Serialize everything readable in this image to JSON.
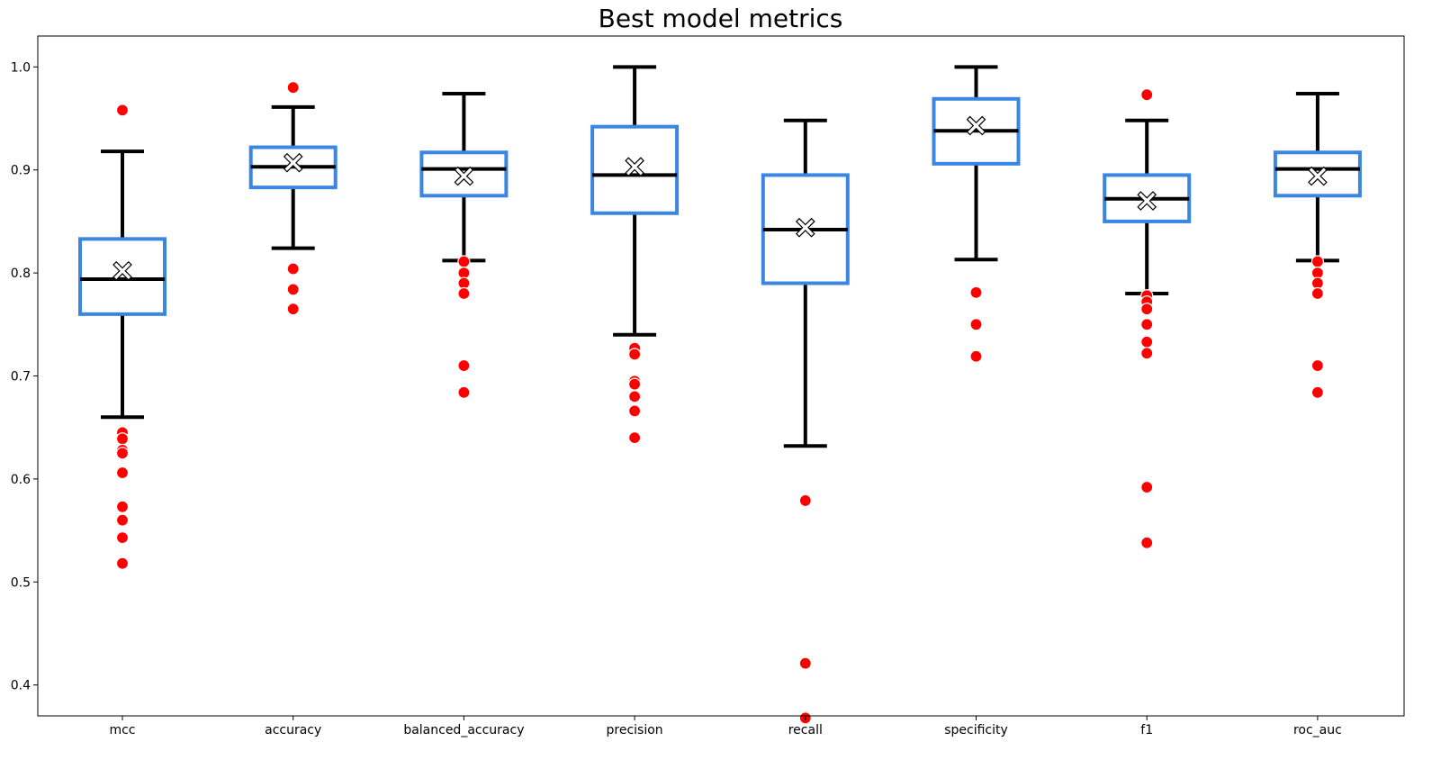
{
  "chart_data": {
    "type": "box",
    "title": "Best model metrics",
    "xlabel": "",
    "ylabel": "",
    "ylim": [
      0.37,
      1.03
    ],
    "yticks": [
      0.4,
      0.5,
      0.6,
      0.7,
      0.8,
      0.9,
      1.0
    ],
    "ytick_labels": [
      "0.4",
      "0.5",
      "0.6",
      "0.7",
      "0.8",
      "0.9",
      "1.0"
    ],
    "grid": false,
    "colors": {
      "box": "#3a86e0",
      "whisker": "#000000",
      "median": "#000000",
      "outlier": "#ff0000",
      "mean_marker_fill": "#ffffff",
      "mean_marker_edge": "#000000"
    },
    "categories": [
      "mcc",
      "accuracy",
      "balanced_accuracy",
      "precision",
      "recall",
      "specificity",
      "f1",
      "roc_auc"
    ],
    "boxes": [
      {
        "name": "mcc",
        "whisker_low": 0.66,
        "q1": 0.76,
        "median": 0.794,
        "q3": 0.833,
        "whisker_high": 0.918,
        "mean": 0.802,
        "outliers": [
          0.958,
          0.645,
          0.639,
          0.628,
          0.625,
          0.606,
          0.573,
          0.56,
          0.543,
          0.518
        ]
      },
      {
        "name": "accuracy",
        "whisker_low": 0.824,
        "q1": 0.883,
        "median": 0.903,
        "q3": 0.922,
        "whisker_high": 0.961,
        "mean": 0.907,
        "outliers": [
          0.98,
          0.804,
          0.784,
          0.765
        ]
      },
      {
        "name": "balanced_accuracy",
        "whisker_low": 0.812,
        "q1": 0.875,
        "median": 0.901,
        "q3": 0.917,
        "whisker_high": 0.974,
        "mean": 0.894,
        "outliers": [
          0.811,
          0.8,
          0.79,
          0.78,
          0.71,
          0.684
        ]
      },
      {
        "name": "precision",
        "whisker_low": 0.74,
        "q1": 0.858,
        "median": 0.895,
        "q3": 0.942,
        "whisker_high": 1.0,
        "mean": 0.903,
        "outliers": [
          0.727,
          0.721,
          0.695,
          0.692,
          0.68,
          0.666,
          0.64
        ]
      },
      {
        "name": "recall",
        "whisker_low": 0.632,
        "q1": 0.79,
        "median": 0.842,
        "q3": 0.895,
        "whisker_high": 0.948,
        "mean": 0.844,
        "outliers": [
          0.579,
          0.421,
          0.368
        ]
      },
      {
        "name": "specificity",
        "whisker_low": 0.813,
        "q1": 0.906,
        "median": 0.938,
        "q3": 0.969,
        "whisker_high": 1.0,
        "mean": 0.943,
        "outliers": [
          0.781,
          0.75,
          0.719
        ]
      },
      {
        "name": "f1",
        "whisker_low": 0.78,
        "q1": 0.85,
        "median": 0.872,
        "q3": 0.895,
        "whisker_high": 0.948,
        "mean": 0.87,
        "outliers": [
          0.973,
          0.778,
          0.772,
          0.765,
          0.75,
          0.733,
          0.722,
          0.592,
          0.538
        ]
      },
      {
        "name": "roc_auc",
        "whisker_low": 0.812,
        "q1": 0.875,
        "median": 0.901,
        "q3": 0.917,
        "whisker_high": 0.974,
        "mean": 0.894,
        "outliers": [
          0.811,
          0.8,
          0.79,
          0.78,
          0.71,
          0.684
        ]
      }
    ]
  }
}
